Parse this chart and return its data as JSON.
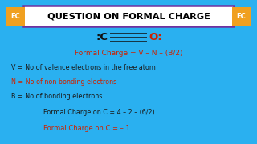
{
  "bg_color": "#fdf5e0",
  "border_color": "#2ab0f0",
  "title_text": "QUESTION ON FORMAL CHARGE",
  "title_box_edge": "#7030a0",
  "title_bg": "#ffffff",
  "title_color": "#000000",
  "ec_bg": "#f0a020",
  "ec_text": "EC",
  "formula_line": "Formal Charge = V – N – (B/2)",
  "line_v": "V = No of valence electrons in the free atom",
  "line_n": "N = No of non bonding electrons",
  "line_b": "B = No of bonding electrons",
  "calc_line": "Formal Charge on C = 4 – 2 – (6/2)",
  "result_line": "Formal Charge on C = – 1",
  "red_color": "#cc2200",
  "black_color": "#1a1a1a",
  "mol_black": "#111111",
  "mol_red": "#cc2200"
}
